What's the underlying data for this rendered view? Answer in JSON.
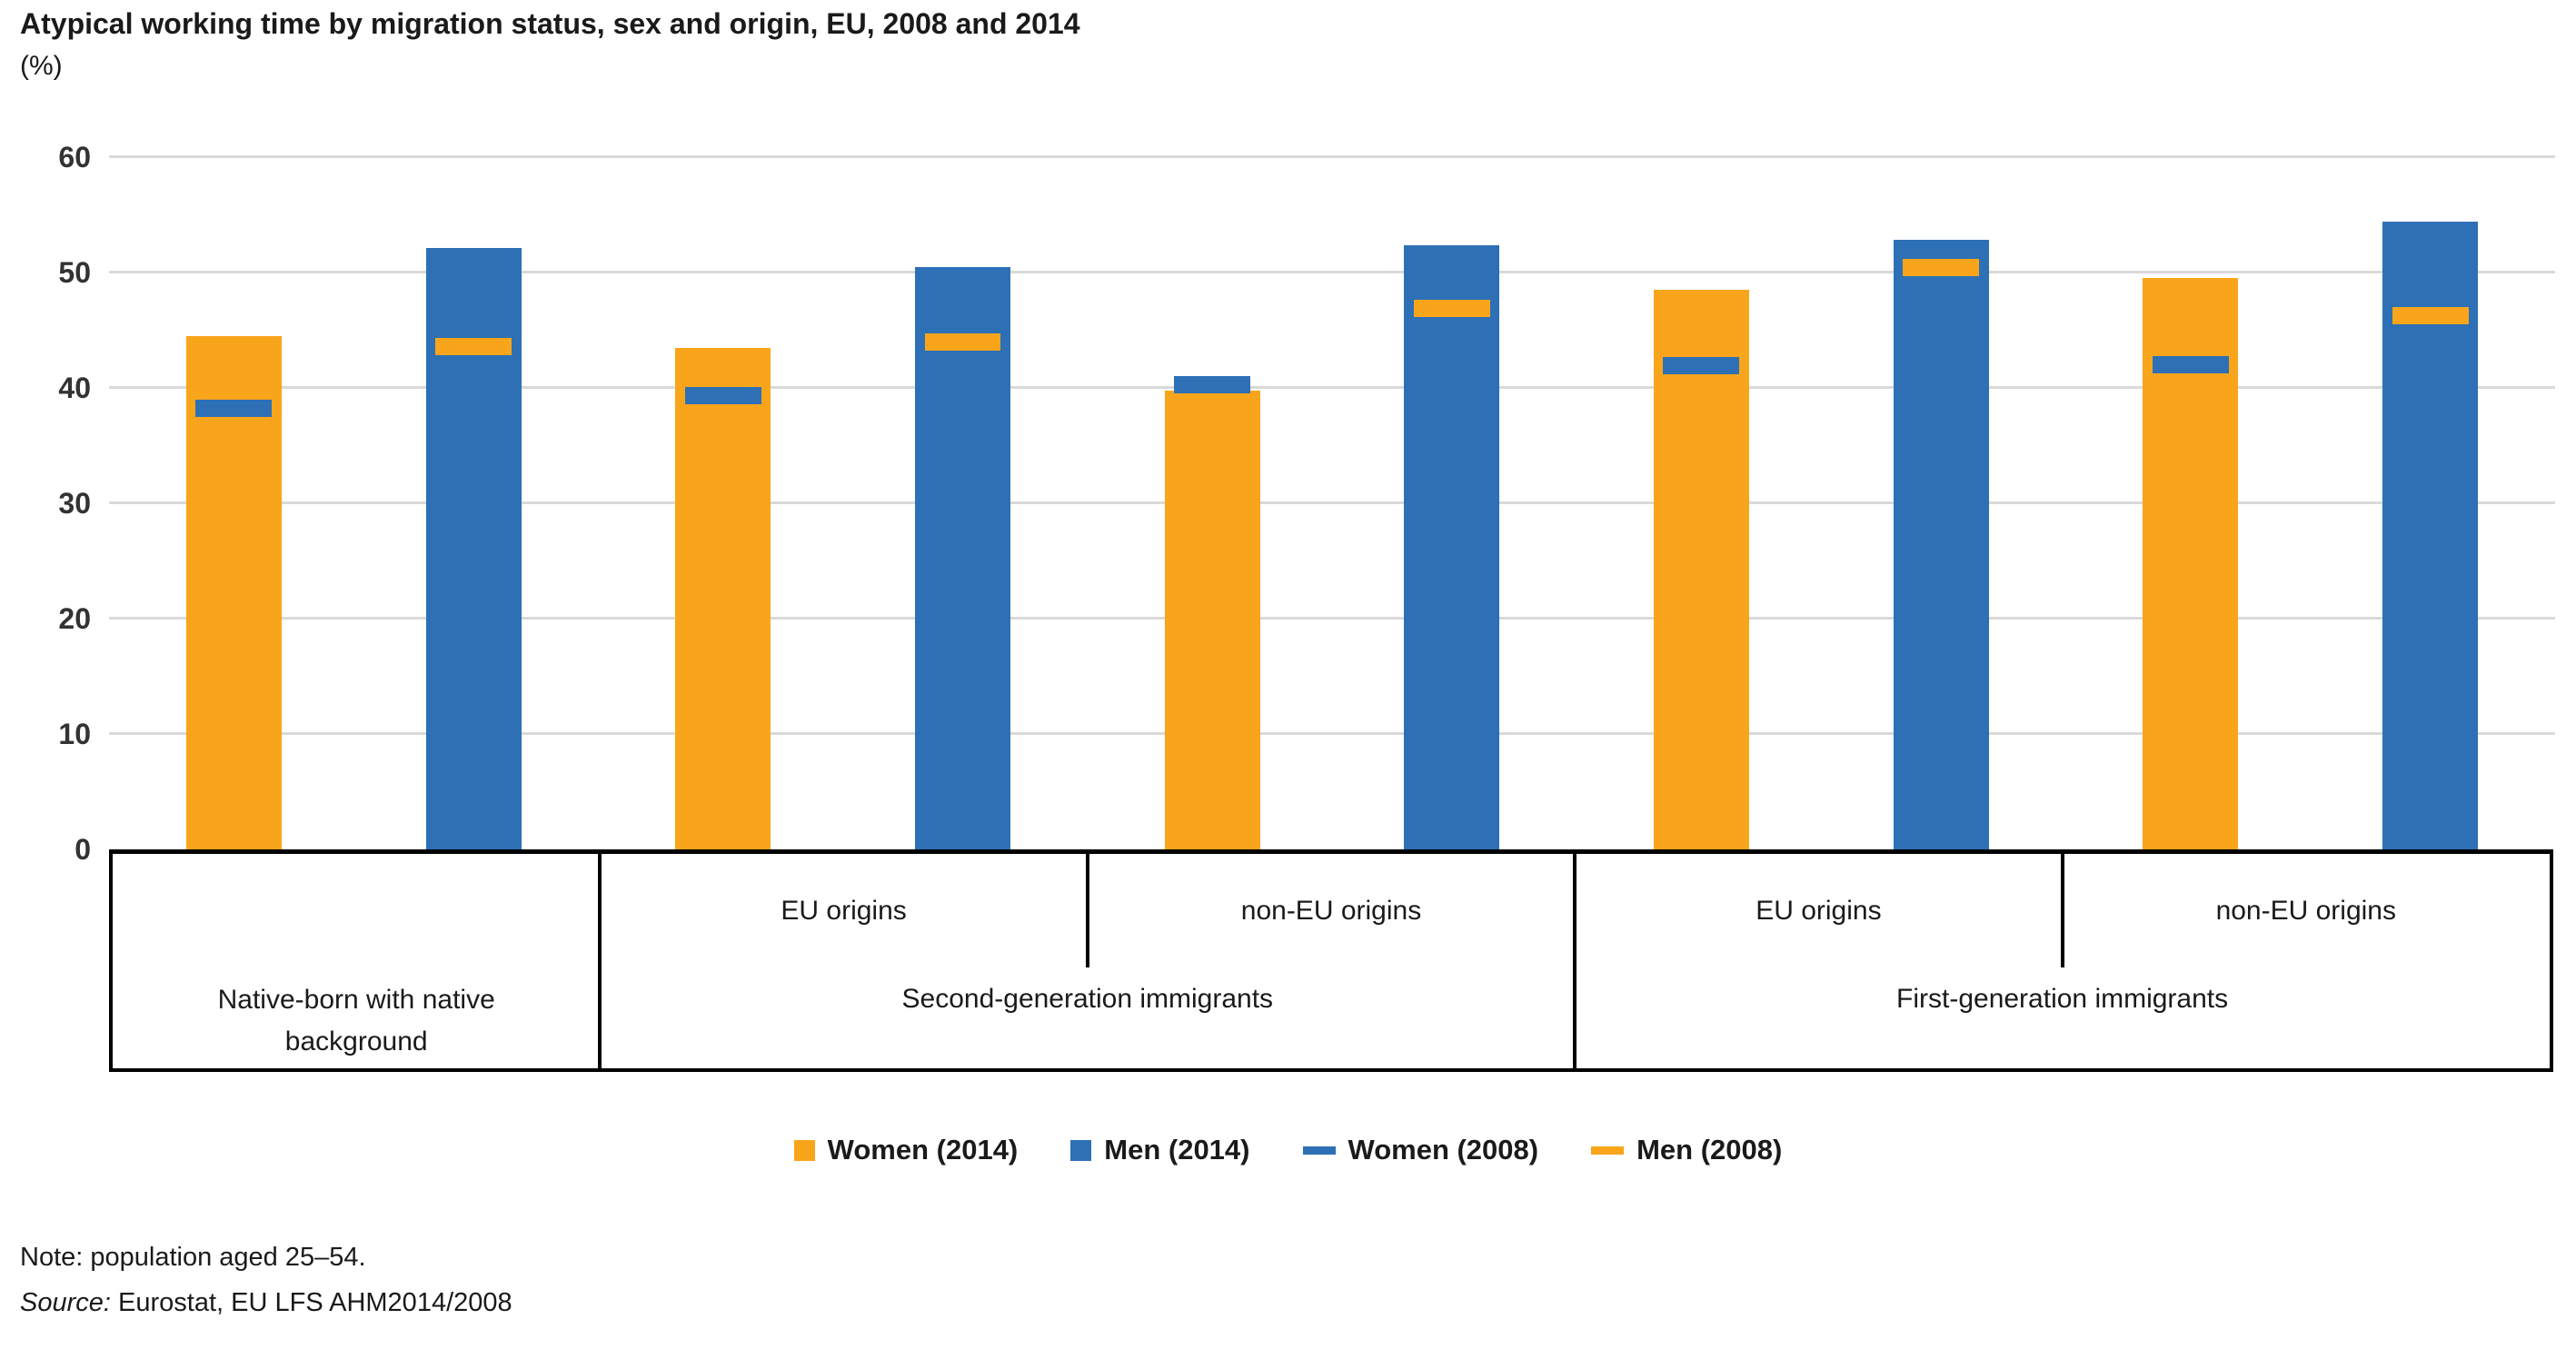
{
  "chart_data": {
    "type": "bar",
    "title": "Atypical working time by migration status, sex and origin, EU, 2008 and 2014",
    "unit_label": "(%)",
    "ylim": [
      0,
      60
    ],
    "yticks": [
      0,
      10,
      20,
      30,
      40,
      50,
      60
    ],
    "grid": "horizontal-light-gray",
    "legend_position": "bottom-center",
    "colors": {
      "orange": "#F9A51B",
      "blue": "#2D70B5"
    },
    "series": [
      {
        "name": "Women (2014)",
        "marker": "bar",
        "color": "#F9A51B",
        "values": [
          44.5,
          43.5,
          39.8,
          48.5,
          49.5
        ]
      },
      {
        "name": "Men (2014)",
        "marker": "bar",
        "color": "#2D70B5",
        "values": [
          52.1,
          50.5,
          52.4,
          52.8,
          54.4
        ]
      },
      {
        "name": "Women (2008)",
        "marker": "dash",
        "color": "#2D70B5",
        "values": [
          38.2,
          39.3,
          40.3,
          41.9,
          42.0
        ]
      },
      {
        "name": "Men (2008)",
        "marker": "dash",
        "color": "#F9A51B",
        "values": [
          43.6,
          44.0,
          46.9,
          50.4,
          46.3
        ]
      }
    ],
    "groups": [
      {
        "label": "Native-born with native background",
        "label_line1": "Native-born with native",
        "label_line2": "background",
        "origin": ""
      },
      {
        "label": "Second-generation immigrants",
        "origin": "EU origins"
      },
      {
        "label": "Second-generation immigrants",
        "origin": "non-EU origins"
      },
      {
        "label": "First-generation immigrants",
        "origin": "EU origins"
      },
      {
        "label": "First-generation immigrants",
        "origin": "non-EU origins"
      }
    ]
  },
  "note": "Note: population aged 25–54.",
  "source": {
    "prefix": "Source:",
    "text": "Eurostat, EU LFS AHM2014/2008"
  }
}
